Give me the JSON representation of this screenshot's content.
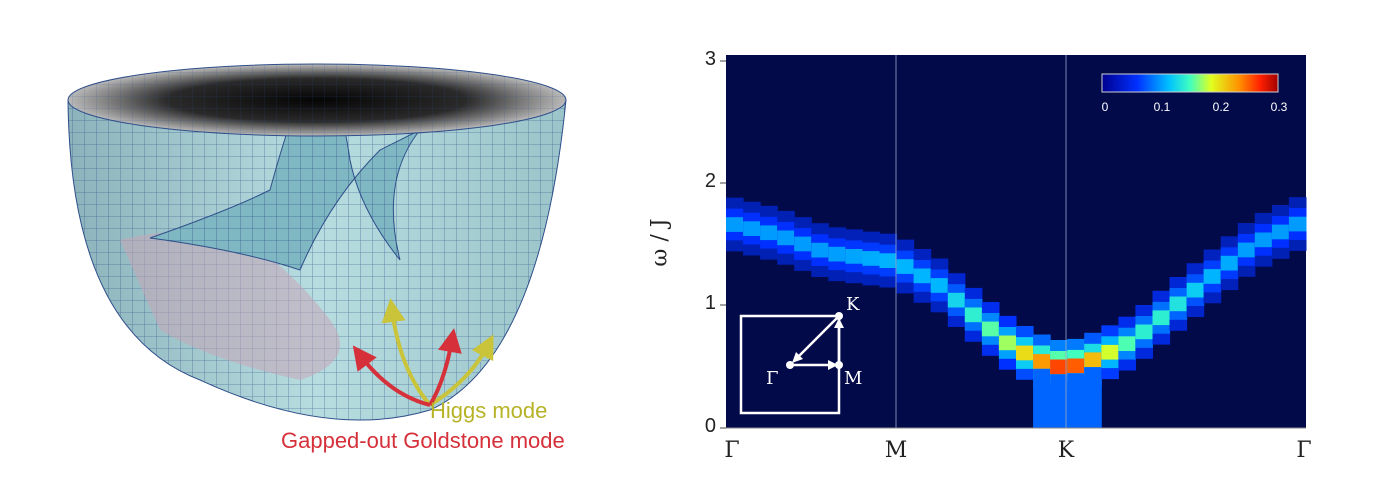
{
  "left_panel": {
    "higgs_label": "Higgs mode",
    "goldstone_label": "Gapped-out Goldstone mode",
    "higgs_color": "#b7b327",
    "goldstone_color": "#d6303a",
    "surface_color": "#a9d2d6",
    "mesh_color": "#2f4f8a"
  },
  "chart_data": {
    "type": "heatmap",
    "title": "",
    "xlabel": "",
    "ylabel": "ω / J",
    "ylim": [
      0,
      3
    ],
    "y_ticks": [
      "0",
      "1",
      "2",
      "3"
    ],
    "x_ticks": [
      {
        "label": "Γ",
        "pos": 0
      },
      {
        "label": "M",
        "pos": 1
      },
      {
        "label": "K",
        "pos": 2
      },
      {
        "label": "Γ",
        "pos": 3.41
      }
    ],
    "colorbar": {
      "min": 0,
      "max": 0.3,
      "ticks": [
        "0",
        "0.1",
        "0.2",
        "0.3"
      ]
    },
    "background_color": "#020a4a",
    "dispersion": [
      {
        "k": 0.0,
        "w": 1.68,
        "i": 0.1
      },
      {
        "k": 0.3,
        "w": 1.58,
        "i": 0.1
      },
      {
        "k": 0.6,
        "w": 1.43,
        "i": 0.1
      },
      {
        "k": 1.0,
        "w": 1.36,
        "i": 0.11
      },
      {
        "k": 1.25,
        "w": 1.17,
        "i": 0.11
      },
      {
        "k": 1.45,
        "w": 0.93,
        "i": 0.14
      },
      {
        "k": 1.65,
        "w": 0.7,
        "i": 0.17
      },
      {
        "k": 1.82,
        "w": 0.56,
        "i": 0.22
      },
      {
        "k": 2.0,
        "w": 0.48,
        "i": 0.27
      },
      {
        "k": 2.2,
        "w": 0.58,
        "i": 0.2
      },
      {
        "k": 2.4,
        "w": 0.72,
        "i": 0.14
      },
      {
        "k": 2.6,
        "w": 0.95,
        "i": 0.14
      },
      {
        "k": 2.85,
        "w": 1.23,
        "i": 0.11
      },
      {
        "k": 3.1,
        "w": 1.5,
        "i": 0.1
      },
      {
        "k": 3.41,
        "w": 1.7,
        "i": 0.1
      }
    ],
    "inset": {
      "gamma": "Γ",
      "m": "M",
      "k": "K"
    }
  }
}
